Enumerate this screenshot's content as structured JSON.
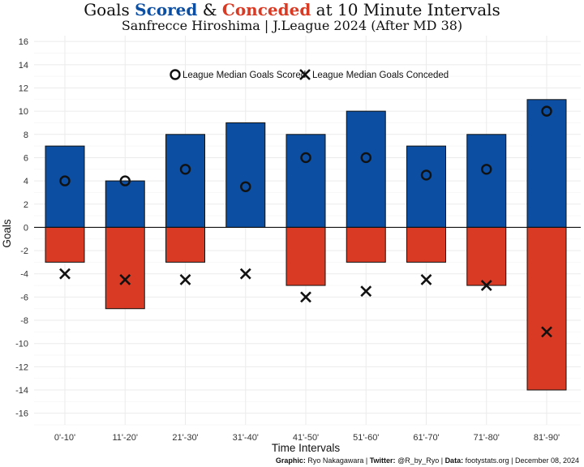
{
  "title": {
    "part1": "Goals ",
    "scored_word": "Scored",
    "part2": " & ",
    "conceded_word": "Conceded",
    "part3": " at 10 Minute Intervals"
  },
  "subtitle": "Sanfrecce Hiroshima | J.League 2024 (After MD 38)",
  "caption": {
    "graphic_label": "Graphic:",
    "graphic_value": " Ryo Nakagawara | ",
    "twitter_label": "Twitter:",
    "twitter_value": " @R_by_Ryo | ",
    "data_label": "Data:",
    "data_value": " footystats.org | December 08, 2024"
  },
  "colors": {
    "scored": "#0b4ea2",
    "conceded": "#d93a24",
    "grid": "#ebebeb",
    "zero_line": "#111111"
  },
  "chart_data": {
    "type": "bar",
    "xlabel": "Time Intervals",
    "ylabel": "Goals",
    "ylim": [
      -17,
      16.5
    ],
    "yticks": [
      16,
      14,
      12,
      10,
      8,
      6,
      4,
      2,
      0,
      -2,
      -4,
      -6,
      -8,
      -10,
      -12,
      -14,
      -16
    ],
    "grid": true,
    "legend_position": "top-center",
    "categories": [
      "0'-10'",
      "11'-20'",
      "21'-30'",
      "31'-40'",
      "41'-50'",
      "51'-60'",
      "61'-70'",
      "71'-80'",
      "81'-90'"
    ],
    "series": [
      {
        "key": "scored",
        "values": [
          7,
          4,
          8,
          9,
          8,
          10,
          7,
          8,
          11
        ]
      },
      {
        "key": "conceded",
        "values": [
          -3,
          -7,
          -3,
          0,
          -5,
          -3,
          -3,
          -5,
          -14
        ]
      },
      {
        "key": "median_scored",
        "name": "League Median Goals Scored",
        "marker": "circle",
        "values": [
          4,
          4,
          5,
          3.5,
          6,
          6,
          4.5,
          5,
          10
        ]
      },
      {
        "key": "median_conceded",
        "name": "League Median Goals Conceded",
        "marker": "x",
        "values": [
          -4,
          -4.5,
          -4.5,
          -4,
          -6,
          -5.5,
          -4.5,
          -5,
          -9
        ]
      }
    ]
  }
}
